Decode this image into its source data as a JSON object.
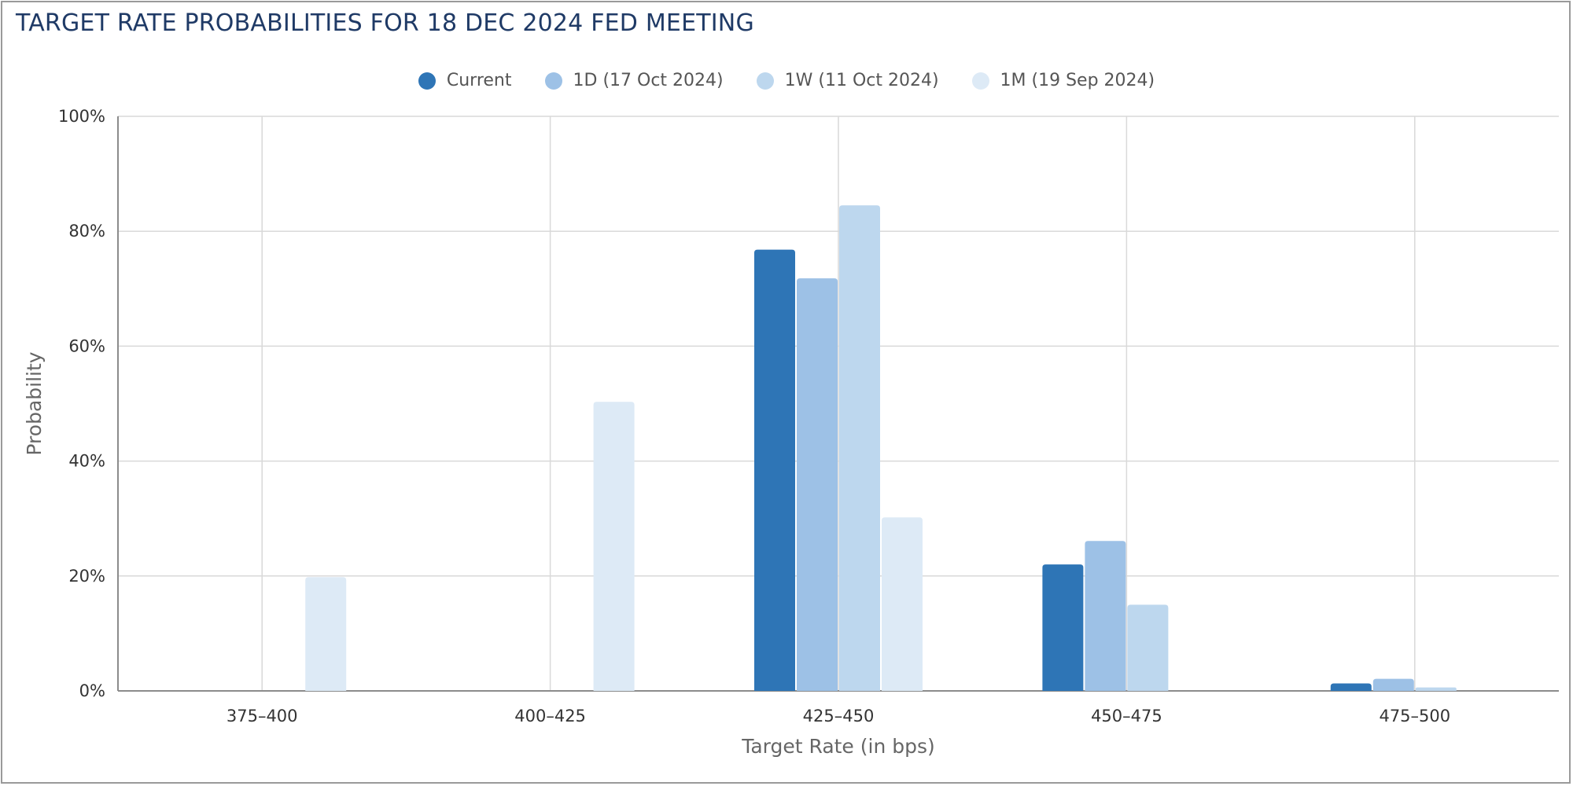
{
  "chart_data": {
    "type": "bar",
    "title": "TARGET RATE PROBABILITIES FOR 18 DEC 2024 FED MEETING",
    "xlabel": "Target Rate (in bps)",
    "ylabel": "Probability",
    "categories": [
      "375-400",
      "400-425",
      "425-450",
      "450-475",
      "475-500"
    ],
    "ylim": [
      0,
      100
    ],
    "yticks": [
      "0%",
      "20%",
      "40%",
      "60%",
      "80%",
      "100%"
    ],
    "grid": true,
    "legend": "top-center",
    "series": [
      {
        "name": "Current",
        "color": "#2e75b6",
        "values": [
          0,
          0,
          76.8,
          22.0,
          1.3
        ]
      },
      {
        "name": "1D (17 Oct 2024)",
        "color": "#9dc1e6",
        "values": [
          0,
          0,
          71.8,
          26.1,
          2.1
        ]
      },
      {
        "name": "1W (11 Oct 2024)",
        "color": "#bdd7ee",
        "values": [
          0,
          0,
          84.5,
          15.0,
          0.6
        ]
      },
      {
        "name": "1M (19 Sep 2024)",
        "color": "#ddeaf6",
        "values": [
          19.8,
          50.3,
          30.2,
          0,
          0
        ]
      }
    ]
  }
}
